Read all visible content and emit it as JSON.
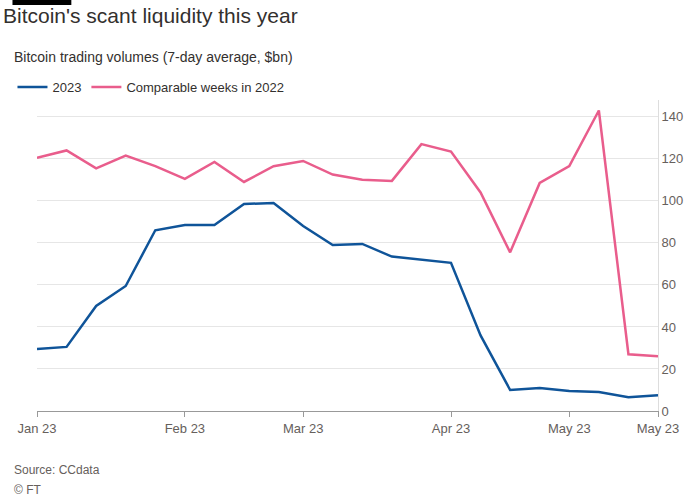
{
  "chart_data": {
    "type": "line",
    "title": "Bitcoin's scant liquidity this year",
    "subtitle": "Bitcoin trading volumes (7-day average, $bn)",
    "categories": [
      "Jan 23",
      null,
      null,
      null,
      null,
      "Feb 23",
      null,
      null,
      null,
      "Mar 23",
      null,
      null,
      null,
      null,
      "Apr 23",
      null,
      null,
      null,
      "May 23",
      null,
      null,
      "May 23"
    ],
    "series": [
      {
        "name": "2023",
        "color": "#0f5499",
        "values": [
          29.5,
          30.5,
          50,
          59.5,
          86,
          88.5,
          88.5,
          98.5,
          99,
          88,
          79,
          79.5,
          73.5,
          72,
          70.5,
          36,
          10,
          11,
          9.5,
          9,
          6.5,
          7.5
        ]
      },
      {
        "name": "Comparable weeks in 2022",
        "color": "#e95d8c",
        "values": [
          120.5,
          124,
          115.5,
          121.5,
          116.5,
          110.5,
          118.5,
          109,
          116.5,
          119,
          112.5,
          110,
          109.5,
          127,
          123.5,
          104,
          75.5,
          108.5,
          116.5,
          143,
          27,
          26
        ]
      }
    ],
    "ylim": [
      0,
      148
    ],
    "yticks": [
      0,
      20,
      40,
      60,
      80,
      100,
      120,
      140
    ],
    "grid": true,
    "legend": "top-left",
    "annotations": [
      "Source: CCdata",
      "© FT"
    ]
  }
}
